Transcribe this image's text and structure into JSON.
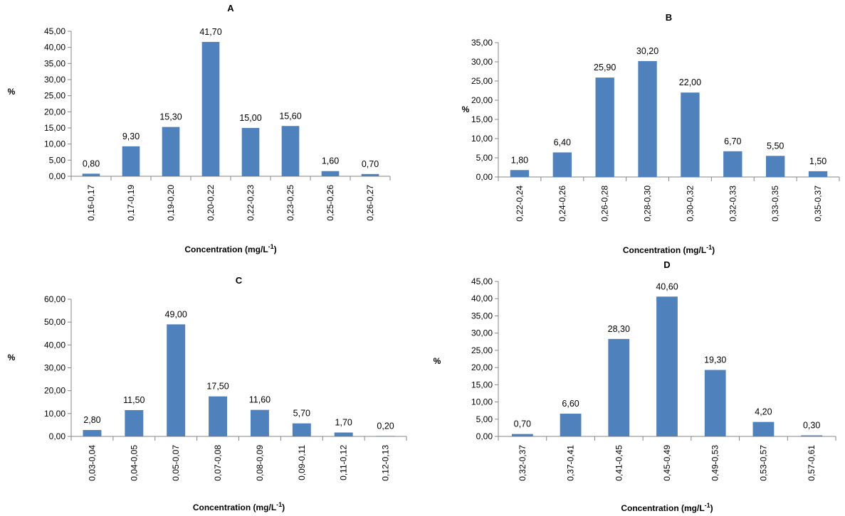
{
  "chart_data": [
    {
      "type": "bar",
      "title": "A",
      "xlabel": "Concentration (mg/L-1)",
      "xlabel_main": "Concentration (mg/L",
      "xlabel_sup": "-1",
      "xlabel_end": ")",
      "ylabel": "%",
      "ylim": [
        0,
        45
      ],
      "ytick_step": 5,
      "yticks": [
        "0,00",
        "5,00",
        "10,00",
        "15,00",
        "20,00",
        "25,00",
        "30,00",
        "35,00",
        "40,00",
        "45,00"
      ],
      "categories": [
        "0,16-0,17",
        "0,17-0,19",
        "0,19-0,20",
        "0,20-0,22",
        "0,22-0,23",
        "0,23-0,25",
        "0,25-0,26",
        "0,26-0,27"
      ],
      "values": [
        0.8,
        9.3,
        15.3,
        41.7,
        15.0,
        15.6,
        1.6,
        0.7
      ],
      "data_labels": [
        "0,80",
        "9,30",
        "15,30",
        "41,70",
        "15,00",
        "15,60",
        "1,60",
        "0,70"
      ],
      "grid": false,
      "bar_color": "#4F81BD"
    },
    {
      "type": "bar",
      "title": "B",
      "xlabel": "Concentration (mg/L-1)",
      "xlabel_main": "Concentration (mg/L",
      "xlabel_sup": "-1",
      "xlabel_end": ")",
      "ylabel": "%",
      "ylim": [
        0,
        35
      ],
      "ytick_step": 5,
      "yticks": [
        "0,00",
        "5,00",
        "10,00",
        "15,00",
        "20,00",
        "25,00",
        "30,00",
        "35,00"
      ],
      "categories": [
        "0,22-0,24",
        "0,24-0,26",
        "0,26-0,28",
        "0,28-0,30",
        "0,30-0,32",
        "0,32-0,33",
        "0,33-0,35",
        "0,35-0,37"
      ],
      "values": [
        1.8,
        6.4,
        25.9,
        30.2,
        22.0,
        6.7,
        5.5,
        1.5
      ],
      "data_labels": [
        "1,80",
        "6,40",
        "25,90",
        "30,20",
        "22,00",
        "6,70",
        "5,50",
        "1,50"
      ],
      "grid": false,
      "bar_color": "#4F81BD"
    },
    {
      "type": "bar",
      "title": "C",
      "xlabel": "Concentration (mg/L-1)",
      "xlabel_main": "Concentration (mg/L",
      "xlabel_sup": "-1",
      "xlabel_end": ")",
      "ylabel": "%",
      "ylim": [
        0,
        60
      ],
      "ytick_step": 10,
      "yticks": [
        "0,00",
        "10,00",
        "20,00",
        "30,00",
        "40,00",
        "50,00",
        "60,00"
      ],
      "categories": [
        "0,03-0,04",
        "0,04-0,05",
        "0,05-0,07",
        "0,07-0,08",
        "0,08-0,09",
        "0,09-0,11",
        "0,11-0,12",
        "0,12-0,13"
      ],
      "values": [
        2.8,
        11.5,
        49.0,
        17.5,
        11.6,
        5.7,
        1.7,
        0.2
      ],
      "data_labels": [
        "2,80",
        "11,50",
        "49,00",
        "17,50",
        "11,60",
        "5,70",
        "1,70",
        "0,20"
      ],
      "grid": false,
      "bar_color": "#4F81BD"
    },
    {
      "type": "bar",
      "title": "D",
      "xlabel": "Concentration (mg/L-1)",
      "xlabel_main": "Concentration (mg/L",
      "xlabel_sup": "-1",
      "xlabel_end": ")",
      "ylabel": "%",
      "ylim": [
        0,
        45
      ],
      "ytick_step": 5,
      "yticks": [
        "0,00",
        "5,00",
        "10,00",
        "15,00",
        "20,00",
        "25,00",
        "30,00",
        "35,00",
        "40,00",
        "45,00"
      ],
      "categories": [
        "0,32-0,37",
        "0,37-0,41",
        "0,41-0,45",
        "0,45-0,49",
        "0,49-0,53",
        "0,53-0,57",
        "0,57-0,61"
      ],
      "values": [
        0.7,
        6.6,
        28.3,
        40.6,
        19.3,
        4.2,
        0.3
      ],
      "data_labels": [
        "0,70",
        "6,60",
        "28,30",
        "40,60",
        "19,30",
        "4,20",
        "0,30"
      ],
      "grid": false,
      "bar_color": "#4F81BD"
    }
  ]
}
